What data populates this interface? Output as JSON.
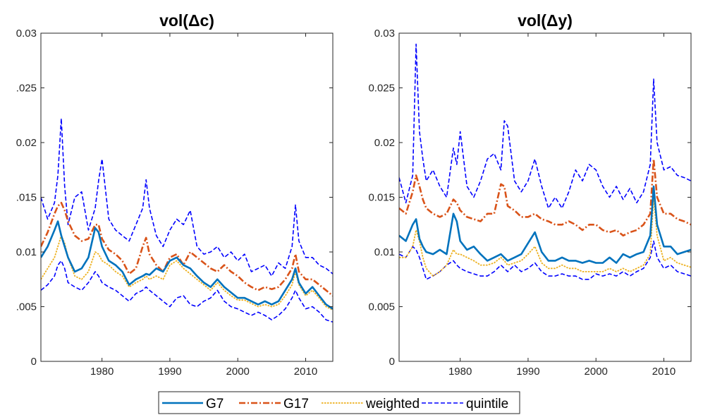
{
  "colors": {
    "G7": "#0072BD",
    "G17": "#D95319",
    "weighted": "#EDB120",
    "quintile": "#0000FF",
    "axis": "#262626"
  },
  "legend": {
    "entries": [
      {
        "key": "G7",
        "label": "G7"
      },
      {
        "key": "G17",
        "label": "G17"
      },
      {
        "key": "weighted",
        "label": "weighted"
      },
      {
        "key": "quintile",
        "label": "quintile"
      }
    ],
    "placement": "bottom-center"
  },
  "chart_data": [
    {
      "type": "line",
      "title": "vol(Δc)",
      "xlabel": "",
      "ylabel": "",
      "xlim": [
        1971,
        2014
      ],
      "ylim": [
        0,
        0.03
      ],
      "xticks": [
        1980,
        1990,
        2000,
        2010
      ],
      "xtick_labels": [
        "1980",
        "1990",
        "2000",
        "2010"
      ],
      "yticks": [
        0,
        0.005,
        0.01,
        0.015,
        0.02,
        0.025,
        0.03
      ],
      "ytick_labels": [
        "0",
        ".005",
        "0.01",
        ".015",
        "0.02",
        ".025",
        "0.03"
      ],
      "grid": false,
      "x": [
        1971,
        1972,
        1973,
        1973.5,
        1974,
        1974.5,
        1975,
        1976,
        1977,
        1978,
        1979,
        1979.5,
        1980,
        1981,
        1982,
        1983,
        1984,
        1985,
        1986,
        1986.5,
        1987,
        1988,
        1989,
        1990,
        1991,
        1992,
        1993,
        1994,
        1995,
        1996,
        1997,
        1998,
        1999,
        2000,
        2001,
        2002,
        2003,
        2004,
        2005,
        2006,
        2007,
        2008,
        2008.5,
        2009,
        2010,
        2011,
        2012,
        2013,
        2014
      ],
      "series": [
        {
          "key": "G7",
          "name": "G7",
          "style": "solid",
          "values": [
            0.0095,
            0.0105,
            0.012,
            0.0128,
            0.0115,
            0.0105,
            0.0095,
            0.0082,
            0.0085,
            0.0095,
            0.0122,
            0.0118,
            0.0105,
            0.0092,
            0.0088,
            0.0082,
            0.007,
            0.0075,
            0.0078,
            0.008,
            0.0079,
            0.0085,
            0.0082,
            0.0092,
            0.0095,
            0.0088,
            0.0085,
            0.0078,
            0.0072,
            0.0068,
            0.0075,
            0.0068,
            0.0063,
            0.0058,
            0.0058,
            0.0055,
            0.0052,
            0.0055,
            0.0052,
            0.0055,
            0.0065,
            0.0075,
            0.0085,
            0.0072,
            0.0062,
            0.0068,
            0.006,
            0.0052,
            0.0048
          ]
        },
        {
          "key": "G17",
          "name": "G17",
          "style": "dashdot",
          "values": [
            0.0105,
            0.0118,
            0.0135,
            0.0142,
            0.0145,
            0.0138,
            0.0128,
            0.0115,
            0.011,
            0.0112,
            0.0125,
            0.0125,
            0.0112,
            0.0102,
            0.0098,
            0.0092,
            0.008,
            0.0085,
            0.0105,
            0.0113,
            0.0098,
            0.0088,
            0.0082,
            0.0095,
            0.0098,
            0.0088,
            0.01,
            0.0095,
            0.009,
            0.0085,
            0.0082,
            0.0088,
            0.0082,
            0.0078,
            0.0072,
            0.0068,
            0.0065,
            0.0068,
            0.0066,
            0.0068,
            0.0075,
            0.0085,
            0.0098,
            0.0082,
            0.0075,
            0.0075,
            0.007,
            0.0065,
            0.006
          ]
        },
        {
          "key": "weighted",
          "name": "weighted",
          "style": "dotted",
          "values": [
            0.0075,
            0.0085,
            0.0095,
            0.0105,
            0.0115,
            0.0108,
            0.0095,
            0.0078,
            0.0075,
            0.0082,
            0.01,
            0.0098,
            0.0092,
            0.0088,
            0.0082,
            0.0078,
            0.0068,
            0.0072,
            0.0075,
            0.0078,
            0.0075,
            0.0078,
            0.0075,
            0.0088,
            0.0092,
            0.0085,
            0.008,
            0.0075,
            0.007,
            0.0065,
            0.0072,
            0.0065,
            0.006,
            0.0056,
            0.0056,
            0.0053,
            0.005,
            0.0052,
            0.005,
            0.0052,
            0.006,
            0.007,
            0.0082,
            0.007,
            0.006,
            0.0065,
            0.0058,
            0.005,
            0.0047
          ]
        },
        {
          "key": "quintile",
          "name": "quintile",
          "style": "dashed",
          "band": "upper",
          "values": [
            0.015,
            0.013,
            0.0145,
            0.017,
            0.0222,
            0.016,
            0.0125,
            0.015,
            0.0155,
            0.012,
            0.014,
            0.0165,
            0.0185,
            0.013,
            0.012,
            0.0115,
            0.011,
            0.0125,
            0.014,
            0.0166,
            0.014,
            0.0115,
            0.0105,
            0.012,
            0.013,
            0.0125,
            0.0138,
            0.0105,
            0.0098,
            0.01,
            0.0105,
            0.0095,
            0.01,
            0.0092,
            0.0098,
            0.0082,
            0.0085,
            0.0088,
            0.0078,
            0.009,
            0.0085,
            0.0105,
            0.0143,
            0.011,
            0.0095,
            0.0095,
            0.0088,
            0.0085,
            0.008
          ]
        },
        {
          "key": "quintile",
          "name": "",
          "style": "dashed",
          "band": "lower",
          "values": [
            0.0065,
            0.007,
            0.0078,
            0.0088,
            0.0092,
            0.0085,
            0.0072,
            0.0068,
            0.0065,
            0.0072,
            0.0082,
            0.0078,
            0.0072,
            0.0068,
            0.0065,
            0.006,
            0.0055,
            0.0062,
            0.0065,
            0.0068,
            0.0065,
            0.006,
            0.0055,
            0.005,
            0.0058,
            0.006,
            0.0052,
            0.005,
            0.0055,
            0.0058,
            0.0065,
            0.0055,
            0.005,
            0.0048,
            0.0045,
            0.0042,
            0.0045,
            0.0042,
            0.0038,
            0.0042,
            0.0048,
            0.0058,
            0.0065,
            0.0058,
            0.0048,
            0.005,
            0.0045,
            0.0038,
            0.0036
          ]
        }
      ]
    },
    {
      "type": "line",
      "title": "vol(Δy)",
      "xlabel": "",
      "ylabel": "",
      "xlim": [
        1971,
        2014
      ],
      "ylim": [
        0,
        0.03
      ],
      "xticks": [
        1980,
        1990,
        2000,
        2010
      ],
      "xtick_labels": [
        "1980",
        "1990",
        "2000",
        "2010"
      ],
      "yticks": [
        0,
        0.005,
        0.01,
        0.015,
        0.02,
        0.025,
        0.03
      ],
      "ytick_labels": [
        "0",
        "0.005",
        "0.01",
        "0.015",
        "0.02",
        "0.025",
        "0.03"
      ],
      "grid": false,
      "x": [
        1971,
        1972,
        1973,
        1973.5,
        1974,
        1974.5,
        1975,
        1976,
        1977,
        1978,
        1979,
        1979.5,
        1980,
        1981,
        1982,
        1983,
        1984,
        1985,
        1986,
        1986.5,
        1987,
        1988,
        1989,
        1990,
        1991,
        1992,
        1993,
        1994,
        1995,
        1996,
        1997,
        1998,
        1999,
        2000,
        2001,
        2002,
        2003,
        2004,
        2005,
        2006,
        2007,
        2008,
        2008.5,
        2009,
        2010,
        2011,
        2012,
        2013,
        2014
      ],
      "series": [
        {
          "key": "G7",
          "name": "G7",
          "style": "solid",
          "values": [
            0.0115,
            0.011,
            0.0125,
            0.013,
            0.0112,
            0.0105,
            0.01,
            0.0098,
            0.0102,
            0.0098,
            0.0135,
            0.0128,
            0.011,
            0.0102,
            0.0105,
            0.0098,
            0.0092,
            0.0095,
            0.0098,
            0.0095,
            0.0092,
            0.0095,
            0.0098,
            0.0108,
            0.0118,
            0.01,
            0.0092,
            0.0092,
            0.0095,
            0.0092,
            0.0092,
            0.009,
            0.0092,
            0.009,
            0.009,
            0.0095,
            0.009,
            0.0098,
            0.0095,
            0.0098,
            0.01,
            0.0115,
            0.016,
            0.0125,
            0.0105,
            0.0105,
            0.0098,
            0.01,
            0.0102
          ]
        },
        {
          "key": "G17",
          "name": "G17",
          "style": "dashdot",
          "values": [
            0.014,
            0.0135,
            0.0155,
            0.017,
            0.016,
            0.0148,
            0.014,
            0.0135,
            0.0132,
            0.0135,
            0.0148,
            0.0145,
            0.0138,
            0.0132,
            0.013,
            0.0128,
            0.0135,
            0.0135,
            0.0162,
            0.016,
            0.0142,
            0.0138,
            0.0132,
            0.0132,
            0.0135,
            0.013,
            0.0128,
            0.0125,
            0.0125,
            0.0128,
            0.0125,
            0.012,
            0.0125,
            0.0125,
            0.012,
            0.0118,
            0.012,
            0.0115,
            0.0118,
            0.012,
            0.0125,
            0.0135,
            0.0185,
            0.015,
            0.0135,
            0.0135,
            0.013,
            0.0128,
            0.0125
          ]
        },
        {
          "key": "weighted",
          "name": "weighted",
          "style": "dotted",
          "values": [
            0.0095,
            0.0095,
            0.0105,
            0.012,
            0.011,
            0.0095,
            0.0085,
            0.0078,
            0.0082,
            0.0088,
            0.0102,
            0.0098,
            0.0098,
            0.0095,
            0.0092,
            0.0088,
            0.0088,
            0.009,
            0.0095,
            0.0092,
            0.0088,
            0.009,
            0.0092,
            0.0098,
            0.0105,
            0.009,
            0.0085,
            0.0085,
            0.0088,
            0.0085,
            0.0085,
            0.0082,
            0.0082,
            0.0082,
            0.0082,
            0.0085,
            0.0082,
            0.0085,
            0.0082,
            0.0085,
            0.0088,
            0.0098,
            0.015,
            0.0115,
            0.0092,
            0.0095,
            0.009,
            0.0088,
            0.0086
          ]
        },
        {
          "key": "quintile",
          "name": "quintile",
          "style": "dashed",
          "band": "upper",
          "values": [
            0.0168,
            0.0145,
            0.017,
            0.029,
            0.021,
            0.0185,
            0.0165,
            0.0175,
            0.016,
            0.015,
            0.0195,
            0.018,
            0.021,
            0.016,
            0.015,
            0.0165,
            0.0185,
            0.019,
            0.0175,
            0.022,
            0.0215,
            0.0165,
            0.0155,
            0.0165,
            0.0185,
            0.016,
            0.014,
            0.015,
            0.014,
            0.0155,
            0.0175,
            0.0165,
            0.018,
            0.0175,
            0.016,
            0.015,
            0.016,
            0.0148,
            0.0158,
            0.0145,
            0.0155,
            0.018,
            0.0258,
            0.02,
            0.0175,
            0.0178,
            0.017,
            0.0168,
            0.0165
          ]
        },
        {
          "key": "quintile",
          "name": "",
          "style": "dashed",
          "band": "lower",
          "values": [
            0.0098,
            0.0095,
            0.0105,
            0.0102,
            0.0095,
            0.0085,
            0.0075,
            0.0078,
            0.0082,
            0.0088,
            0.0092,
            0.0088,
            0.0085,
            0.0082,
            0.008,
            0.0078,
            0.0078,
            0.0082,
            0.0088,
            0.0085,
            0.0082,
            0.0088,
            0.0082,
            0.0085,
            0.009,
            0.0082,
            0.0078,
            0.0078,
            0.008,
            0.0078,
            0.0078,
            0.0075,
            0.0075,
            0.008,
            0.0078,
            0.008,
            0.0078,
            0.0082,
            0.0078,
            0.0082,
            0.0085,
            0.0095,
            0.011,
            0.0095,
            0.0085,
            0.0088,
            0.0082,
            0.008,
            0.0078
          ]
        }
      ]
    }
  ]
}
